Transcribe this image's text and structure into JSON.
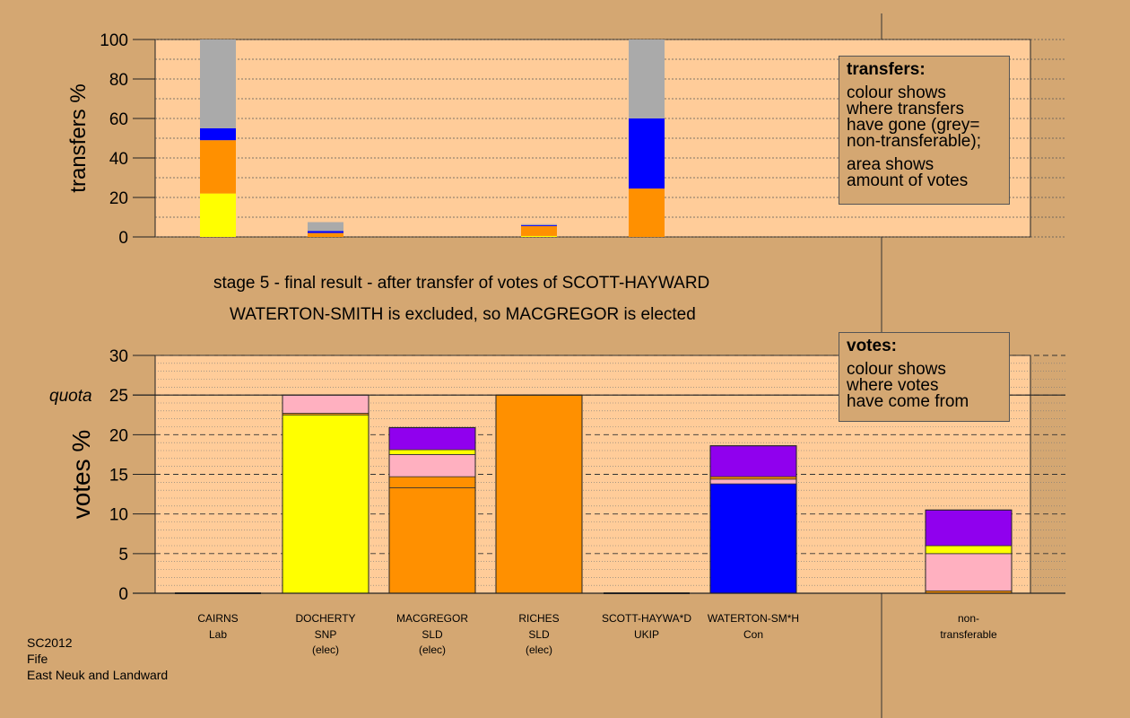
{
  "colors": {
    "background": "#d4a772",
    "plot_background": "#ffcc99",
    "grey": "#aaaaaa",
    "blue": "#0000ff",
    "orange": "#ff9000",
    "yellow": "#ffff00",
    "pink": "#ffb0c0",
    "purple": "#9000ee"
  },
  "captions": {
    "stage": "stage 5 - final result - after transfer of votes of SCOTT-HAYWARD",
    "result": "WATERTON-SMITH is excluded, so MACGREGOR is elected"
  },
  "legend_transfers": {
    "title": "transfers:",
    "para1": [
      "colour shows",
      "where transfers",
      "have gone (grey=",
      "non-transferable);"
    ],
    "para2": [
      "area shows",
      "amount of votes"
    ]
  },
  "legend_votes": {
    "title": "votes:",
    "para1": [
      "colour shows",
      "where votes",
      "have come from"
    ]
  },
  "footer": [
    "SC2012",
    "Fife",
    "East Neuk and Landward"
  ],
  "chart_data": [
    {
      "type": "bar",
      "stacked": true,
      "ylabel": "transfers %",
      "ylim": [
        0,
        100
      ],
      "yticks": [
        0,
        20,
        40,
        60,
        80,
        100
      ],
      "grid": true,
      "series_colors": [
        "yellow",
        "orange",
        "blue",
        "grey"
      ],
      "bars": [
        {
          "slot": 0,
          "segments": [
            {
              "color": "yellow",
              "value": 22
            },
            {
              "color": "orange",
              "value": 27
            },
            {
              "color": "blue",
              "value": 6
            },
            {
              "color": "grey",
              "value": 45
            }
          ]
        },
        {
          "slot": 1,
          "segments": [
            {
              "color": "orange",
              "value": 2
            },
            {
              "color": "blue",
              "value": 1
            },
            {
              "color": "grey",
              "value": 4.5
            }
          ]
        },
        {
          "slot": 3,
          "segments": [
            {
              "color": "yellow",
              "value": 0.5
            },
            {
              "color": "orange",
              "value": 5
            },
            {
              "color": "blue",
              "value": 0.5
            },
            {
              "color": "grey",
              "value": 0.5
            }
          ]
        },
        {
          "slot": 4,
          "segments": [
            {
              "color": "orange",
              "value": 24.5
            },
            {
              "color": "blue",
              "value": 35.5
            },
            {
              "color": "grey",
              "value": 40
            }
          ]
        }
      ]
    },
    {
      "type": "bar",
      "stacked": true,
      "ylabel": "votes %",
      "ylim": [
        0,
        30
      ],
      "yticks": [
        0,
        5,
        10,
        15,
        20,
        25,
        30
      ],
      "quota": 25,
      "quota_label": "quota",
      "grid": true,
      "candidates": [
        {
          "name": "CAIRNS",
          "party": "Lab",
          "status": "",
          "segments": []
        },
        {
          "name": "DOCHERTY",
          "party": "SNP",
          "status": "(elec)",
          "segments": [
            {
              "color": "yellow",
              "value": 22.5
            },
            {
              "color": "orange",
              "value": 0.2
            },
            {
              "color": "pink",
              "value": 2.3
            }
          ]
        },
        {
          "name": "MACGREGOR",
          "party": "SLD",
          "status": "(elec)",
          "segments": [
            {
              "color": "orange",
              "value": 13.3
            },
            {
              "color": "orange",
              "value": 1.4
            },
            {
              "color": "pink",
              "value": 2.8
            },
            {
              "color": "yellow",
              "value": 0.6
            },
            {
              "color": "purple",
              "value": 2.8
            }
          ]
        },
        {
          "name": "RICHES",
          "party": "SLD",
          "status": "(elec)",
          "segments": [
            {
              "color": "orange",
              "value": 25
            }
          ]
        },
        {
          "name": "SCOTT-HAYWA*D",
          "party": "UKIP",
          "status": "",
          "segments": []
        },
        {
          "name": "WATERTON-SM*H",
          "party": "Con",
          "status": "",
          "segments": [
            {
              "color": "blue",
              "value": 13.8
            },
            {
              "color": "pink",
              "value": 0.6
            },
            {
              "color": "orange",
              "value": 0.3
            },
            {
              "color": "purple",
              "value": 3.9
            }
          ]
        },
        {
          "name": "non-",
          "party": "transferable",
          "status": "",
          "segments": [
            {
              "color": "orange",
              "value": 0.3
            },
            {
              "color": "pink",
              "value": 4.7
            },
            {
              "color": "yellow",
              "value": 1
            },
            {
              "color": "purple",
              "value": 4.5
            }
          ]
        }
      ]
    }
  ]
}
